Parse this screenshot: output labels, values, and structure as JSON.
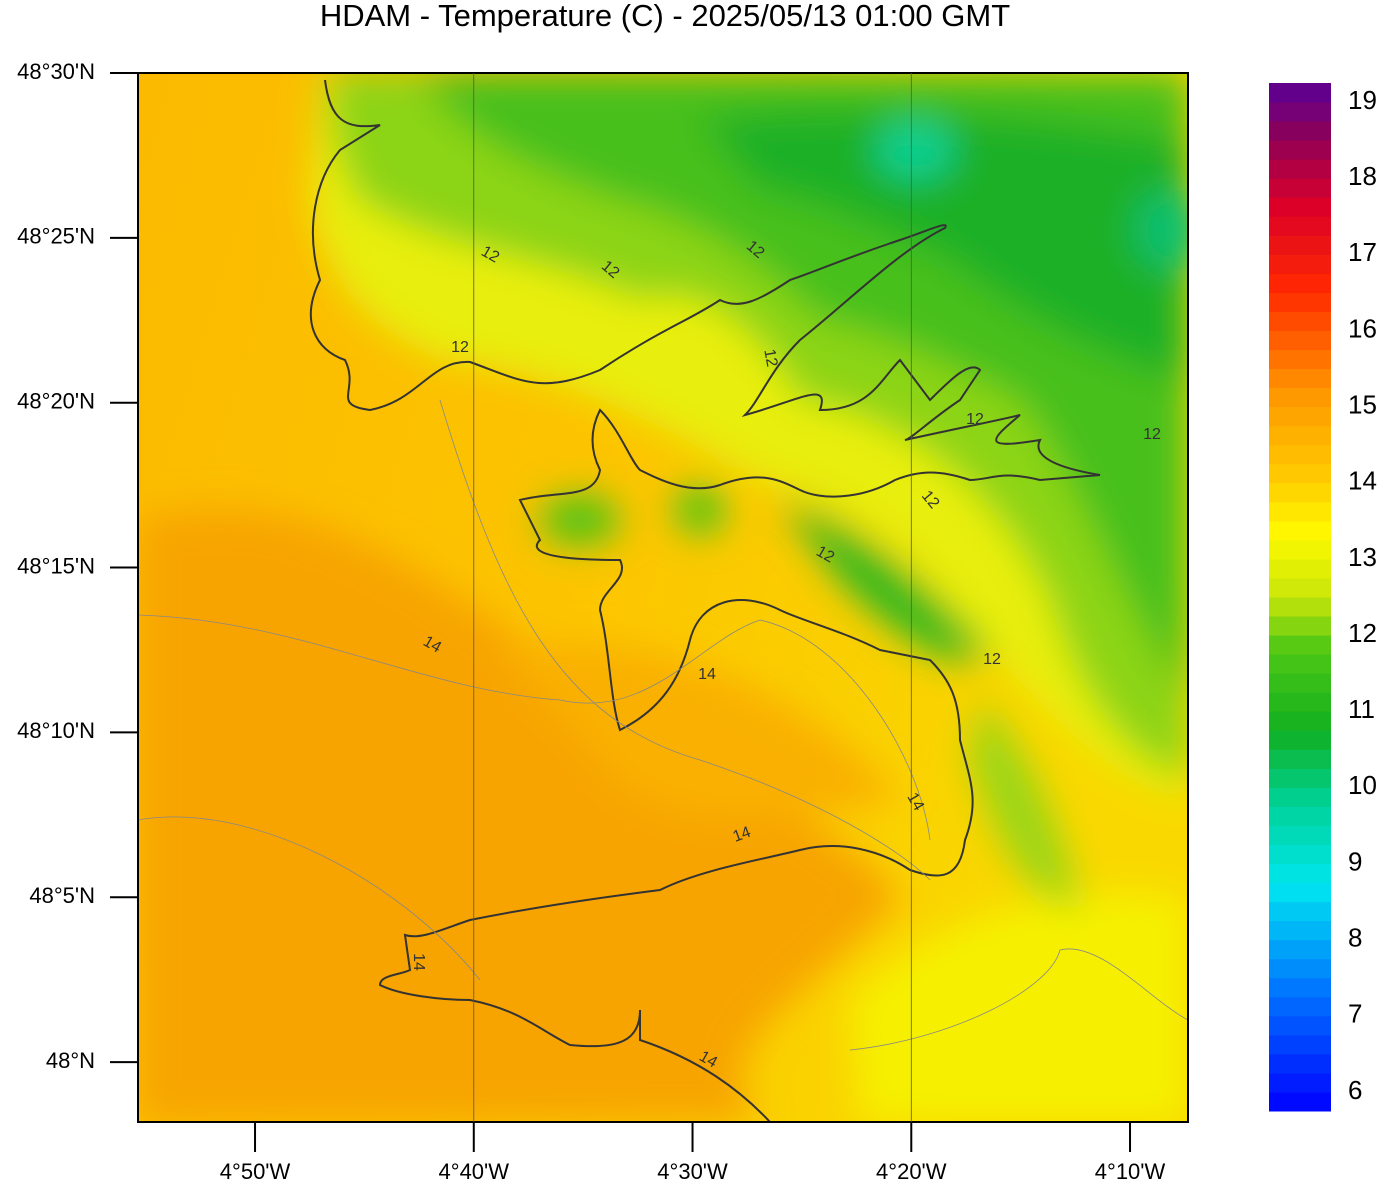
{
  "title": "HDAM - Temperature (C)  -  2025/05/13  01:00 GMT",
  "map": {
    "xlim": [
      -4.9225,
      -4.1225
    ],
    "ylim": [
      47.9697,
      48.5
    ],
    "xticks": [
      {
        "value": -4.833333,
        "label": "4°50'W"
      },
      {
        "value": -4.666667,
        "label": "4°40'W"
      },
      {
        "value": -4.5,
        "label": "4°30'W"
      },
      {
        "value": -4.333333,
        "label": "4°20'W"
      },
      {
        "value": -4.166667,
        "label": "4°10'W"
      }
    ],
    "yticks": [
      {
        "value": 48.0,
        "label": "48°N"
      },
      {
        "value": 48.083333,
        "label": "48°5'N"
      },
      {
        "value": 48.166667,
        "label": "48°10'N"
      },
      {
        "value": 48.25,
        "label": "48°15'N"
      },
      {
        "value": 48.333333,
        "label": "48°20'N"
      },
      {
        "value": 48.416667,
        "label": "48°25'N"
      },
      {
        "value": 48.5,
        "label": "48°30'N"
      }
    ],
    "meridians": [
      -4.666667,
      -4.333333
    ],
    "contour_labels": [
      "12",
      "12",
      "12",
      "12",
      "12",
      "12",
      "12",
      "12",
      "12",
      "12",
      "14",
      "14",
      "14",
      "14",
      "14",
      "14"
    ]
  },
  "colorbar": {
    "range": [
      5.75,
      19.25
    ],
    "ticks": [
      6,
      7,
      8,
      9,
      10,
      11,
      12,
      13,
      14,
      15,
      16,
      17,
      18,
      19
    ]
  }
}
